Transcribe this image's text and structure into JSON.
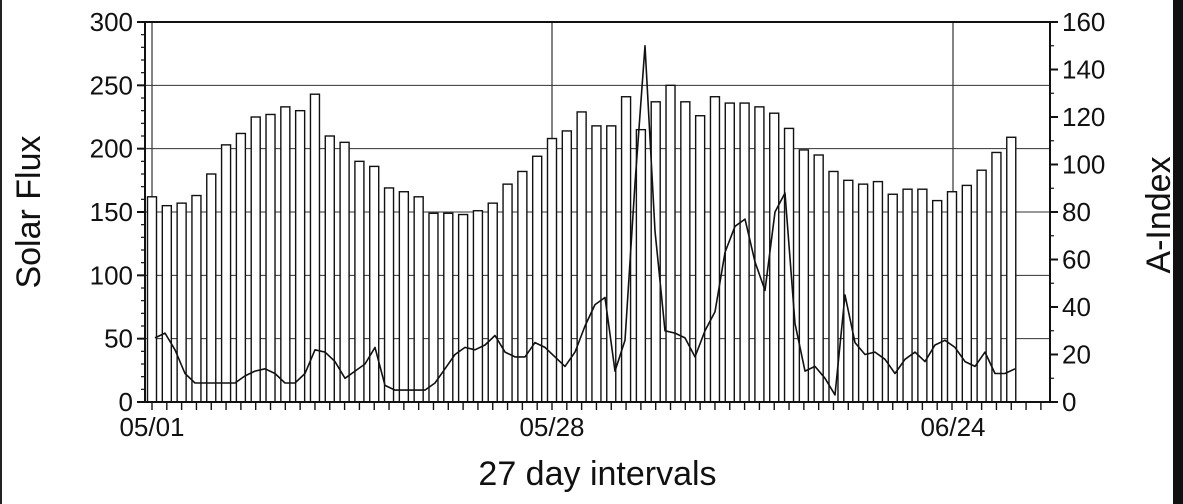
{
  "chart_data": {
    "type": "bar",
    "title": "",
    "xlabel": "27 day intervals",
    "ylabel": "Solar Flux",
    "y2label": "A-Index",
    "x_tick_labels": [
      "05/01",
      "05/28",
      "06/24"
    ],
    "ylim": [
      0,
      300
    ],
    "y2lim": [
      0,
      160
    ],
    "y_ticks": [
      0,
      50,
      100,
      150,
      200,
      250,
      300
    ],
    "y2_ticks": [
      0,
      20,
      40,
      60,
      80,
      100,
      120,
      140,
      160
    ],
    "grid": true,
    "series": [
      {
        "type": "bar",
        "axis": "left",
        "values": [
          162,
          155,
          157,
          163,
          180,
          203,
          212,
          225,
          227,
          233,
          230,
          243,
          210,
          205,
          190,
          186,
          169,
          166,
          162,
          149,
          149,
          148,
          151,
          157,
          172,
          182,
          194,
          208,
          214,
          229,
          218,
          218,
          241,
          215,
          237,
          250,
          237,
          226,
          241,
          236,
          236,
          233,
          228,
          216,
          199,
          195,
          182,
          175,
          172,
          174,
          164,
          168,
          168,
          159,
          166,
          171,
          183,
          197,
          209
        ]
      },
      {
        "type": "line",
        "axis": "right",
        "values": [
          27,
          29,
          22,
          12,
          8,
          8,
          8,
          8,
          8,
          11,
          13,
          14,
          12,
          8,
          8,
          12,
          22,
          21,
          17,
          10,
          13,
          16,
          23,
          7,
          5,
          5,
          5,
          5,
          8,
          14,
          20,
          23,
          22,
          24,
          28,
          21,
          19,
          19,
          25,
          23,
          19,
          15,
          21,
          32,
          41,
          44,
          13,
          26,
          92,
          150,
          72,
          30,
          29,
          27,
          19,
          30,
          38,
          63,
          74,
          77,
          59,
          47,
          80,
          88,
          33,
          13,
          15,
          10,
          3,
          45,
          25,
          20,
          21,
          18,
          12,
          18,
          21,
          17,
          24,
          26,
          23,
          17,
          15,
          21,
          12,
          12,
          14
        ]
      }
    ]
  }
}
